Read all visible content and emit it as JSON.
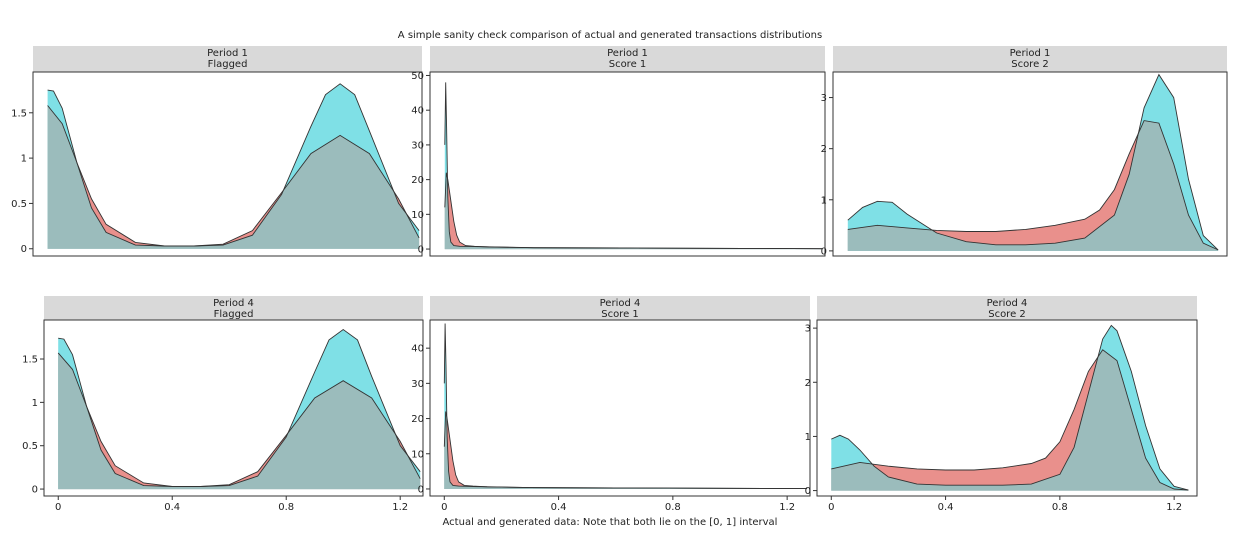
{
  "figure": {
    "title": "A simple sanity check comparison of actual and generated transactions distributions",
    "xlabel": "Actual and generated data: Note that both lie on the [0, 1] interval"
  },
  "colors": {
    "actual": "#e9908c",
    "generated": "#7fe0e6",
    "overlap": "#9bbcbc",
    "strip": "#d9d9d9",
    "outline": "#333333"
  },
  "chart_data": [
    {
      "type": "area",
      "facet": [
        "Period 1",
        "Flagged"
      ],
      "xlim": [
        -0.05,
        1.28
      ],
      "ylim": [
        -0.08,
        1.95
      ],
      "yticks": [
        0,
        0.5,
        1,
        1.5
      ],
      "ytick_labels": [
        "0",
        "0.5",
        "1",
        "1.5"
      ],
      "xticks": [],
      "xtick_labels": [],
      "series": [
        {
          "x": [
            0,
            0.05,
            0.1,
            0.15,
            0.2,
            0.3,
            0.4,
            0.5,
            0.6,
            0.7,
            0.8,
            0.9,
            1.0,
            1.1,
            1.2,
            1.27
          ],
          "y": [
            1.58,
            1.38,
            0.95,
            0.55,
            0.27,
            0.07,
            0.03,
            0.03,
            0.05,
            0.2,
            0.62,
            1.05,
            1.25,
            1.05,
            0.55,
            0.12
          ]
        },
        {
          "x": [
            0,
            0.02,
            0.05,
            0.1,
            0.15,
            0.2,
            0.3,
            0.4,
            0.5,
            0.6,
            0.7,
            0.8,
            0.9,
            0.95,
            1.0,
            1.05,
            1.1,
            1.2,
            1.27
          ],
          "y": [
            1.75,
            1.74,
            1.55,
            0.95,
            0.45,
            0.18,
            0.04,
            0.03,
            0.03,
            0.04,
            0.15,
            0.6,
            1.35,
            1.7,
            1.82,
            1.7,
            1.3,
            0.5,
            0.2
          ]
        }
      ]
    },
    {
      "type": "area",
      "facet": [
        "Period 1",
        "Score 1"
      ],
      "xlim": [
        -0.05,
        1.28
      ],
      "ylim": [
        -2,
        51
      ],
      "yticks": [
        0,
        10,
        20,
        30,
        40,
        50
      ],
      "ytick_labels": [
        "0",
        "10",
        "20",
        "30",
        "40",
        "50"
      ],
      "xticks": [],
      "xtick_labels": [],
      "series": [
        {
          "x": [
            0,
            0.005,
            0.01,
            0.02,
            0.03,
            0.04,
            0.05,
            0.07,
            0.1,
            0.15,
            0.3,
            0.6,
            1.0,
            1.27
          ],
          "y": [
            12,
            22,
            20,
            14,
            8,
            4,
            2,
            1,
            0.8,
            0.6,
            0.4,
            0.3,
            0.2,
            0.1
          ]
        },
        {
          "x": [
            0,
            0.003,
            0.006,
            0.01,
            0.015,
            0.02,
            0.03,
            0.05,
            0.1,
            0.3,
            0.6,
            1.0,
            1.27
          ],
          "y": [
            30,
            48,
            35,
            15,
            5,
            2,
            1,
            0.8,
            0.7,
            0.4,
            0.3,
            0.2,
            0.1
          ]
        }
      ]
    },
    {
      "type": "area",
      "facet": [
        "Period 1",
        "Score 2"
      ],
      "xlim": [
        -0.05,
        1.28
      ],
      "ylim": [
        -0.1,
        3.5
      ],
      "yticks": [
        0,
        1,
        2,
        3
      ],
      "ytick_labels": [
        "0",
        "1",
        "2",
        "3"
      ],
      "xticks": [],
      "xtick_labels": [],
      "series": [
        {
          "x": [
            0,
            0.1,
            0.2,
            0.3,
            0.4,
            0.5,
            0.6,
            0.7,
            0.8,
            0.85,
            0.9,
            0.95,
            1.0,
            1.05,
            1.1,
            1.15,
            1.2,
            1.25
          ],
          "y": [
            0.42,
            0.5,
            0.45,
            0.4,
            0.38,
            0.38,
            0.42,
            0.5,
            0.62,
            0.8,
            1.2,
            1.9,
            2.55,
            2.5,
            1.7,
            0.7,
            0.15,
            0.02
          ]
        },
        {
          "x": [
            0,
            0.05,
            0.1,
            0.15,
            0.2,
            0.3,
            0.4,
            0.5,
            0.6,
            0.7,
            0.8,
            0.9,
            0.95,
            1.0,
            1.05,
            1.1,
            1.15,
            1.2,
            1.25
          ],
          "y": [
            0.6,
            0.85,
            0.97,
            0.95,
            0.72,
            0.35,
            0.18,
            0.12,
            0.12,
            0.15,
            0.25,
            0.7,
            1.5,
            2.8,
            3.45,
            3.0,
            1.4,
            0.3,
            0.02
          ]
        }
      ]
    },
    {
      "type": "area",
      "facet": [
        "Period 4",
        "Flagged"
      ],
      "xlim": [
        -0.05,
        1.28
      ],
      "ylim": [
        -0.08,
        1.95
      ],
      "yticks": [
        0,
        0.5,
        1,
        1.5
      ],
      "ytick_labels": [
        "0",
        "0.5",
        "1",
        "1.5"
      ],
      "xticks": [
        0,
        0.4,
        0.8,
        1.2
      ],
      "xtick_labels": [
        "0",
        "0.4",
        "0.8",
        "1.2"
      ],
      "series": [
        {
          "x": [
            0,
            0.05,
            0.1,
            0.15,
            0.2,
            0.3,
            0.4,
            0.5,
            0.6,
            0.7,
            0.8,
            0.9,
            1.0,
            1.1,
            1.2,
            1.27
          ],
          "y": [
            1.57,
            1.38,
            0.95,
            0.55,
            0.27,
            0.07,
            0.03,
            0.03,
            0.05,
            0.2,
            0.62,
            1.05,
            1.25,
            1.05,
            0.55,
            0.12
          ]
        },
        {
          "x": [
            0,
            0.02,
            0.05,
            0.1,
            0.15,
            0.2,
            0.3,
            0.4,
            0.5,
            0.6,
            0.7,
            0.8,
            0.9,
            0.95,
            1.0,
            1.05,
            1.1,
            1.2,
            1.27
          ],
          "y": [
            1.74,
            1.73,
            1.55,
            0.95,
            0.45,
            0.18,
            0.04,
            0.03,
            0.03,
            0.04,
            0.15,
            0.6,
            1.35,
            1.72,
            1.84,
            1.72,
            1.3,
            0.5,
            0.2
          ]
        }
      ]
    },
    {
      "type": "area",
      "facet": [
        "Period 4",
        "Score 1"
      ],
      "xlim": [
        -0.05,
        1.28
      ],
      "ylim": [
        -2,
        48
      ],
      "yticks": [
        0,
        10,
        20,
        30,
        40
      ],
      "ytick_labels": [
        "0",
        "10",
        "20",
        "30",
        "40"
      ],
      "xticks": [
        0,
        0.4,
        0.8,
        1.2
      ],
      "xtick_labels": [
        "0",
        "0.4",
        "0.8",
        "1.2"
      ],
      "series": [
        {
          "x": [
            0,
            0.005,
            0.01,
            0.02,
            0.03,
            0.04,
            0.05,
            0.07,
            0.1,
            0.15,
            0.3,
            0.6,
            1.0,
            1.27
          ],
          "y": [
            12,
            22,
            20,
            14,
            8,
            4,
            2,
            1,
            0.8,
            0.6,
            0.4,
            0.3,
            0.2,
            0.1
          ]
        },
        {
          "x": [
            0,
            0.003,
            0.006,
            0.01,
            0.015,
            0.02,
            0.03,
            0.05,
            0.1,
            0.3,
            0.6,
            1.0,
            1.27
          ],
          "y": [
            30,
            47,
            35,
            15,
            5,
            2,
            1,
            0.8,
            0.7,
            0.4,
            0.3,
            0.2,
            0.1
          ]
        }
      ]
    },
    {
      "type": "area",
      "facet": [
        "Period 4",
        "Score 2"
      ],
      "xlim": [
        -0.05,
        1.28
      ],
      "ylim": [
        -0.1,
        3.15
      ],
      "yticks": [
        0,
        1,
        2,
        3
      ],
      "ytick_labels": [
        "0",
        "1",
        "2",
        "3"
      ],
      "xticks": [
        0,
        0.4,
        0.8,
        1.2
      ],
      "xtick_labels": [
        "0",
        "0.4",
        "0.8",
        "1.2"
      ],
      "series": [
        {
          "x": [
            0,
            0.1,
            0.2,
            0.3,
            0.4,
            0.5,
            0.6,
            0.7,
            0.75,
            0.8,
            0.85,
            0.9,
            0.95,
            1.0,
            1.05,
            1.1,
            1.15,
            1.2,
            1.25
          ],
          "y": [
            0.4,
            0.52,
            0.45,
            0.4,
            0.38,
            0.38,
            0.42,
            0.5,
            0.6,
            0.9,
            1.5,
            2.2,
            2.6,
            2.4,
            1.5,
            0.6,
            0.15,
            0.03,
            0.01
          ]
        },
        {
          "x": [
            0,
            0.03,
            0.06,
            0.1,
            0.15,
            0.2,
            0.3,
            0.4,
            0.5,
            0.6,
            0.7,
            0.8,
            0.85,
            0.9,
            0.95,
            0.98,
            1.0,
            1.05,
            1.1,
            1.15,
            1.2,
            1.25
          ],
          "y": [
            0.95,
            1.02,
            0.95,
            0.75,
            0.45,
            0.25,
            0.12,
            0.1,
            0.1,
            0.1,
            0.12,
            0.3,
            0.8,
            1.8,
            2.8,
            3.05,
            2.95,
            2.2,
            1.2,
            0.4,
            0.08,
            0.01
          ]
        }
      ]
    }
  ]
}
